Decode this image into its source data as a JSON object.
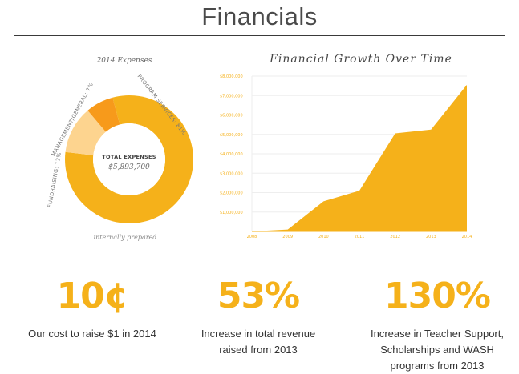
{
  "page": {
    "title": "Financials"
  },
  "chart_data": [
    {
      "type": "pie",
      "title": "2014 Expenses",
      "center_label": "TOTAL EXPENSES",
      "center_value": "$5,893,700",
      "note": "internally prepared",
      "slices": [
        {
          "label": "PROGRAM SERVICES: 81%",
          "value": 81,
          "color": "#f5b11a"
        },
        {
          "label": "FUNDRAISING: 12%",
          "value": 12,
          "color": "#fdd48f"
        },
        {
          "label": "MANAGEMENT/GENERAL: 7%",
          "value": 7,
          "color": "#f79a1b"
        }
      ]
    },
    {
      "type": "area",
      "title": "Financial Growth Over Time",
      "x": [
        "2008",
        "2009",
        "2010",
        "2011",
        "2012",
        "2013",
        "2014"
      ],
      "values": [
        0,
        100000,
        1550000,
        2100000,
        5050000,
        5250000,
        7550000
      ],
      "ylim": [
        0,
        8000000
      ],
      "yticks": [
        "$1,000,000",
        "$2,000,000",
        "$3,000,000",
        "$4,000,000",
        "$5,000,000",
        "$6,000,000",
        "$7,000,000",
        "$8,000,000"
      ],
      "color": "#f5b11a",
      "grid": true
    }
  ],
  "stats": [
    {
      "value": "10¢",
      "desc": "Our cost to raise $1 in 2014"
    },
    {
      "value": "53%",
      "desc": "Increase in total revenue raised from 2013"
    },
    {
      "value": "130%",
      "desc": "Increase in Teacher Support, Scholarships and WASH programs from 2013"
    }
  ]
}
